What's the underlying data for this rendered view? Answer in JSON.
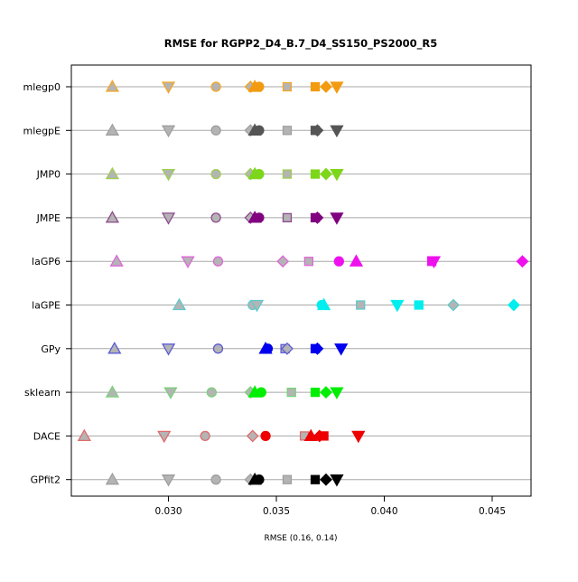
{
  "chart_data": {
    "type": "scatter",
    "title": "RMSE for RGPP2_D4_B.7_D4_SS150_PS2000_R5",
    "xlabel": "RMSE (0.16, 0.14)",
    "ylabel": "",
    "xlim": [
      0.0255,
      0.0468
    ],
    "xticks": [
      0.03,
      0.035,
      0.04,
      0.045
    ],
    "xtick_labels": [
      "0.030",
      "0.035",
      "0.040",
      "0.045"
    ],
    "grid": "horizontal lines at each method",
    "legend": "none",
    "methods": [
      {
        "name": "mlegp0",
        "color": "#f5a623",
        "filled_color": "#f29b11",
        "points": [
          {
            "x": 0.0274,
            "marker": "triangle-up",
            "filled": false
          },
          {
            "x": 0.03,
            "marker": "triangle-down",
            "filled": false
          },
          {
            "x": 0.0322,
            "marker": "circle",
            "filled": false
          },
          {
            "x": 0.0338,
            "marker": "diamond",
            "filled": false
          },
          {
            "x": 0.034,
            "marker": "triangle-up",
            "filled": true
          },
          {
            "x": 0.0342,
            "marker": "circle",
            "filled": true
          },
          {
            "x": 0.0355,
            "marker": "square",
            "filled": false
          },
          {
            "x": 0.0368,
            "marker": "square",
            "filled": true
          },
          {
            "x": 0.0373,
            "marker": "diamond",
            "filled": true
          },
          {
            "x": 0.0378,
            "marker": "triangle-down",
            "filled": true
          }
        ]
      },
      {
        "name": "mlegpE",
        "color": "#9e9e9e",
        "filled_color": "#555555",
        "points": [
          {
            "x": 0.0274,
            "marker": "triangle-up",
            "filled": false
          },
          {
            "x": 0.03,
            "marker": "triangle-down",
            "filled": false
          },
          {
            "x": 0.0322,
            "marker": "circle",
            "filled": false
          },
          {
            "x": 0.0338,
            "marker": "diamond",
            "filled": false
          },
          {
            "x": 0.034,
            "marker": "triangle-up",
            "filled": true
          },
          {
            "x": 0.0342,
            "marker": "circle",
            "filled": true
          },
          {
            "x": 0.0355,
            "marker": "square",
            "filled": false
          },
          {
            "x": 0.0368,
            "marker": "square",
            "filled": true
          },
          {
            "x": 0.0369,
            "marker": "diamond",
            "filled": true
          },
          {
            "x": 0.0378,
            "marker": "triangle-down",
            "filled": true
          }
        ]
      },
      {
        "name": "JMP0",
        "color": "#9ccf4f",
        "filled_color": "#7cd61a",
        "points": [
          {
            "x": 0.0274,
            "marker": "triangle-up",
            "filled": false
          },
          {
            "x": 0.03,
            "marker": "triangle-down",
            "filled": false
          },
          {
            "x": 0.0322,
            "marker": "circle",
            "filled": false
          },
          {
            "x": 0.0338,
            "marker": "diamond",
            "filled": false
          },
          {
            "x": 0.034,
            "marker": "triangle-up",
            "filled": true
          },
          {
            "x": 0.0342,
            "marker": "circle",
            "filled": true
          },
          {
            "x": 0.0355,
            "marker": "square",
            "filled": false
          },
          {
            "x": 0.0368,
            "marker": "square",
            "filled": true
          },
          {
            "x": 0.0373,
            "marker": "diamond",
            "filled": true
          },
          {
            "x": 0.0378,
            "marker": "triangle-down",
            "filled": true
          }
        ]
      },
      {
        "name": "JMPE",
        "color": "#8e4a8e",
        "filled_color": "#800080",
        "points": [
          {
            "x": 0.0274,
            "marker": "triangle-up",
            "filled": false
          },
          {
            "x": 0.03,
            "marker": "triangle-down",
            "filled": false
          },
          {
            "x": 0.0322,
            "marker": "circle",
            "filled": false
          },
          {
            "x": 0.0338,
            "marker": "diamond",
            "filled": false
          },
          {
            "x": 0.034,
            "marker": "triangle-up",
            "filled": true
          },
          {
            "x": 0.0342,
            "marker": "circle",
            "filled": true
          },
          {
            "x": 0.0355,
            "marker": "square",
            "filled": false
          },
          {
            "x": 0.0368,
            "marker": "square",
            "filled": true
          },
          {
            "x": 0.0369,
            "marker": "diamond",
            "filled": true
          },
          {
            "x": 0.0378,
            "marker": "triangle-down",
            "filled": true
          }
        ]
      },
      {
        "name": "laGP6",
        "color": "#e066d9",
        "filled_color": "#ee11ee",
        "points": [
          {
            "x": 0.0276,
            "marker": "triangle-up",
            "filled": false
          },
          {
            "x": 0.0309,
            "marker": "triangle-down",
            "filled": false
          },
          {
            "x": 0.0323,
            "marker": "circle",
            "filled": false
          },
          {
            "x": 0.0353,
            "marker": "diamond",
            "filled": false
          },
          {
            "x": 0.0365,
            "marker": "square",
            "filled": false
          },
          {
            "x": 0.0379,
            "marker": "circle",
            "filled": true
          },
          {
            "x": 0.0387,
            "marker": "triangle-up",
            "filled": true
          },
          {
            "x": 0.0422,
            "marker": "square",
            "filled": true
          },
          {
            "x": 0.0423,
            "marker": "triangle-down",
            "filled": true
          },
          {
            "x": 0.0464,
            "marker": "diamond",
            "filled": true
          }
        ]
      },
      {
        "name": "laGPE",
        "color": "#5fc8cc",
        "filled_color": "#00eeee",
        "points": [
          {
            "x": 0.0305,
            "marker": "triangle-up",
            "filled": false
          },
          {
            "x": 0.0339,
            "marker": "circle",
            "filled": false
          },
          {
            "x": 0.0341,
            "marker": "triangle-down",
            "filled": false
          },
          {
            "x": 0.0371,
            "marker": "circle",
            "filled": true
          },
          {
            "x": 0.0372,
            "marker": "triangle-up",
            "filled": true
          },
          {
            "x": 0.0389,
            "marker": "square",
            "filled": false
          },
          {
            "x": 0.0406,
            "marker": "triangle-down",
            "filled": true
          },
          {
            "x": 0.0416,
            "marker": "square",
            "filled": true
          },
          {
            "x": 0.0432,
            "marker": "diamond",
            "filled": false
          },
          {
            "x": 0.046,
            "marker": "diamond",
            "filled": true
          }
        ]
      },
      {
        "name": "GPy",
        "color": "#5c5cd6",
        "filled_color": "#0000ee",
        "points": [
          {
            "x": 0.0275,
            "marker": "triangle-up",
            "filled": false
          },
          {
            "x": 0.03,
            "marker": "triangle-down",
            "filled": false
          },
          {
            "x": 0.0323,
            "marker": "circle",
            "filled": false
          },
          {
            "x": 0.0345,
            "marker": "triangle-up",
            "filled": true
          },
          {
            "x": 0.0346,
            "marker": "circle",
            "filled": true
          },
          {
            "x": 0.0354,
            "marker": "square",
            "filled": false
          },
          {
            "x": 0.0355,
            "marker": "diamond",
            "filled": false
          },
          {
            "x": 0.0368,
            "marker": "square",
            "filled": true
          },
          {
            "x": 0.0369,
            "marker": "diamond",
            "filled": true
          },
          {
            "x": 0.038,
            "marker": "triangle-down",
            "filled": true
          }
        ]
      },
      {
        "name": "sklearn",
        "color": "#77d277",
        "filled_color": "#00ee00",
        "points": [
          {
            "x": 0.0274,
            "marker": "triangle-up",
            "filled": false
          },
          {
            "x": 0.0301,
            "marker": "triangle-down",
            "filled": false
          },
          {
            "x": 0.032,
            "marker": "circle",
            "filled": false
          },
          {
            "x": 0.0338,
            "marker": "diamond",
            "filled": false
          },
          {
            "x": 0.034,
            "marker": "triangle-up",
            "filled": true
          },
          {
            "x": 0.0343,
            "marker": "circle",
            "filled": true
          },
          {
            "x": 0.0357,
            "marker": "square",
            "filled": false
          },
          {
            "x": 0.0368,
            "marker": "square",
            "filled": true
          },
          {
            "x": 0.0373,
            "marker": "diamond",
            "filled": true
          },
          {
            "x": 0.0378,
            "marker": "triangle-down",
            "filled": true
          }
        ]
      },
      {
        "name": "DACE",
        "color": "#e06b6b",
        "filled_color": "#ee0000",
        "points": [
          {
            "x": 0.0261,
            "marker": "triangle-up",
            "filled": false
          },
          {
            "x": 0.0298,
            "marker": "triangle-down",
            "filled": false
          },
          {
            "x": 0.0317,
            "marker": "circle",
            "filled": false
          },
          {
            "x": 0.0339,
            "marker": "diamond",
            "filled": false
          },
          {
            "x": 0.0345,
            "marker": "circle",
            "filled": true
          },
          {
            "x": 0.0363,
            "marker": "square",
            "filled": false
          },
          {
            "x": 0.0366,
            "marker": "triangle-up",
            "filled": true
          },
          {
            "x": 0.037,
            "marker": "diamond",
            "filled": true
          },
          {
            "x": 0.0372,
            "marker": "square",
            "filled": true
          },
          {
            "x": 0.0388,
            "marker": "triangle-down",
            "filled": true
          }
        ]
      },
      {
        "name": "GPfit2",
        "color": "#9e9e9e",
        "filled_color": "#000000",
        "points": [
          {
            "x": 0.0274,
            "marker": "triangle-up",
            "filled": false
          },
          {
            "x": 0.03,
            "marker": "triangle-down",
            "filled": false
          },
          {
            "x": 0.0322,
            "marker": "circle",
            "filled": false
          },
          {
            "x": 0.0338,
            "marker": "diamond",
            "filled": false
          },
          {
            "x": 0.034,
            "marker": "triangle-up",
            "filled": true
          },
          {
            "x": 0.0342,
            "marker": "circle",
            "filled": true
          },
          {
            "x": 0.0355,
            "marker": "square",
            "filled": false
          },
          {
            "x": 0.0368,
            "marker": "square",
            "filled": true
          },
          {
            "x": 0.0373,
            "marker": "diamond",
            "filled": true
          },
          {
            "x": 0.0378,
            "marker": "triangle-down",
            "filled": true
          }
        ]
      }
    ]
  }
}
